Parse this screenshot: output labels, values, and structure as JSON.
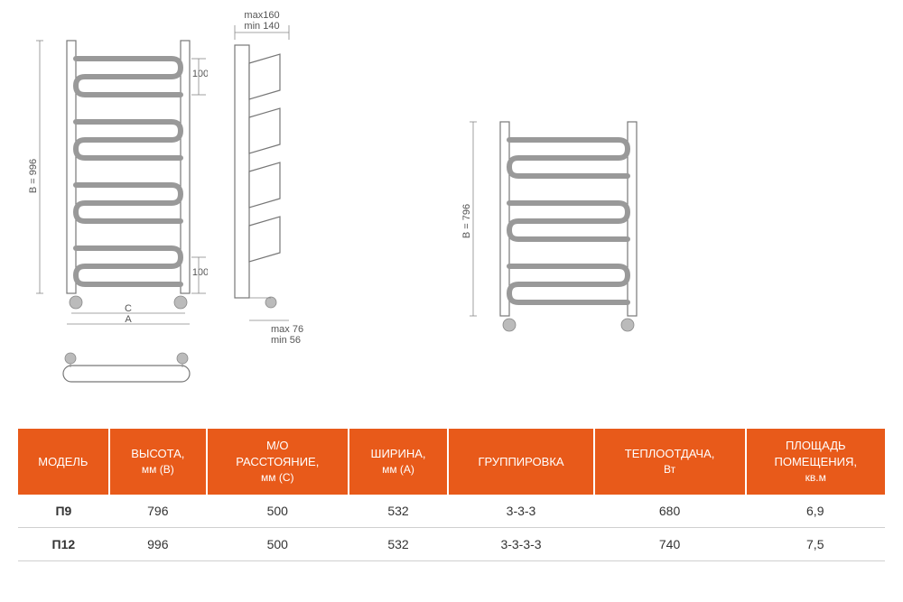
{
  "diagrams": {
    "left_label_b": "B = 996",
    "left_label_c": "C",
    "left_label_a": "A",
    "left_hundred_top": "100",
    "left_hundred_bottom": "100",
    "depth_max": "max160",
    "depth_min": "min 140",
    "proj_max": "max 76",
    "proj_min": "min 56",
    "right_label_b": "B = 796"
  },
  "table": {
    "headers": {
      "model": "МОДЕЛЬ",
      "height_l1": "ВЫСОТА,",
      "height_l2": "мм (В)",
      "spacing_l1": "М/О",
      "spacing_l2": "РАССТОЯНИЕ,",
      "spacing_l3": "мм (С)",
      "width_l1": "ШИРИНА,",
      "width_l2": "мм (А)",
      "grouping": "ГРУППИРОВКА",
      "heat_l1": "ТЕПЛООТДАЧА,",
      "heat_l2": "Вт",
      "area_l1": "ПЛОЩАДЬ",
      "area_l2": "ПОМЕЩЕНИЯ,",
      "area_l3": "кв.м"
    },
    "rows": [
      {
        "model": "П9",
        "height": "796",
        "spacing": "500",
        "width": "532",
        "grouping": "3-3-3",
        "heat": "680",
        "area": "6,9"
      },
      {
        "model": "П12",
        "height": "996",
        "spacing": "500",
        "width": "532",
        "grouping": "3-3-3-3",
        "heat": "740",
        "area": "7,5"
      }
    ]
  },
  "style": {
    "header_bg": "#e85a1a",
    "header_fg": "#ffffff",
    "row_border": "#cfcfcf",
    "outline_stroke": "#777777",
    "tube_stroke": "#999999",
    "background": "#ffffff"
  }
}
